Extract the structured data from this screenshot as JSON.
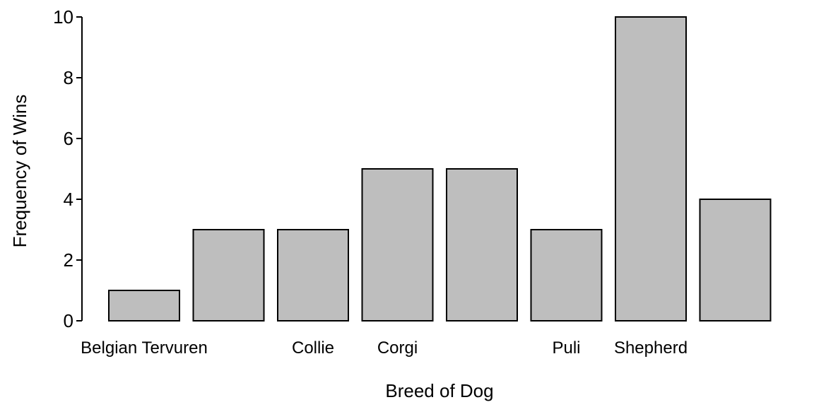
{
  "chart_data": {
    "type": "bar",
    "title": "",
    "xlabel": "Breed of Dog",
    "ylabel": "Frequency of Wins",
    "categories": [
      "Belgian Tervuren",
      "",
      "Collie",
      "Corgi",
      "",
      "Puli",
      "Shepherd",
      ""
    ],
    "values": [
      1,
      3,
      3,
      5,
      5,
      3,
      10,
      4
    ],
    "ylim": [
      0,
      10
    ],
    "yticks": [
      0,
      2,
      4,
      6,
      8,
      10
    ],
    "grid": false,
    "legend": "none",
    "bar_fill": "#bebebe",
    "bar_stroke": "#000000"
  }
}
